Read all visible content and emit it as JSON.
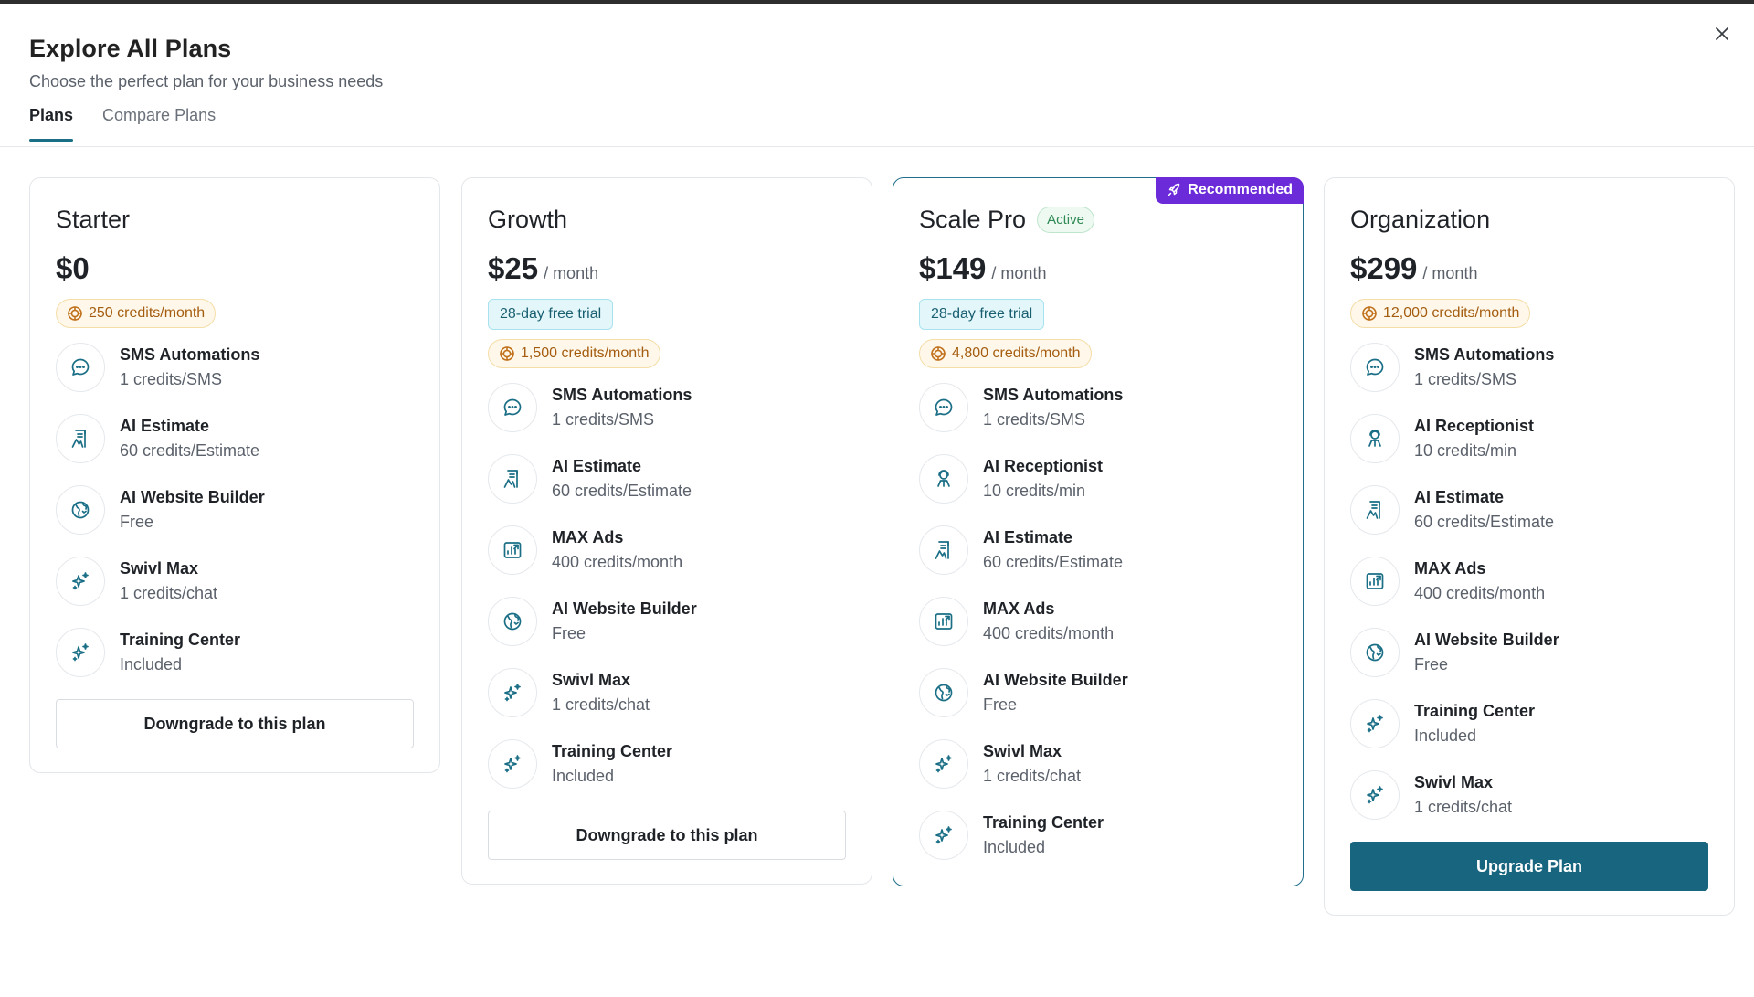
{
  "dialog": {
    "title": "Explore All Plans",
    "subtitle": "Choose the perfect plan for your business needs"
  },
  "tabs": [
    {
      "label": "Plans",
      "active": true
    },
    {
      "label": "Compare Plans",
      "active": false
    }
  ],
  "colors": {
    "accent": "#18657f",
    "recommended": "#6b2bd9",
    "credit_text": "#a45d10",
    "trial_text": "#1a5f70",
    "active_text": "#2f8a55"
  },
  "plans": [
    {
      "name": "Starter",
      "price": "$0",
      "period": "",
      "badge": "",
      "status": "",
      "trial": "",
      "credits": "250 credits/month",
      "features": [
        {
          "name": "SMS Automations",
          "value": "1 credits/SMS",
          "icon": "chat-icon"
        },
        {
          "name": "AI Estimate",
          "value": "60 credits/Estimate",
          "icon": "estimate-icon"
        },
        {
          "name": "AI Website Builder",
          "value": "Free",
          "icon": "globe-icon"
        },
        {
          "name": "Swivl Max",
          "value": "1 credits/chat",
          "icon": "sparkle-icon"
        },
        {
          "name": "Training Center",
          "value": "Included",
          "icon": "sparkle-icon"
        }
      ],
      "button": "Downgrade to this plan",
      "button_style": "outline"
    },
    {
      "name": "Growth",
      "price": "$25",
      "period": "/ month",
      "badge": "",
      "status": "",
      "trial": "28-day free trial",
      "credits": "1,500 credits/month",
      "features": [
        {
          "name": "SMS Automations",
          "value": "1 credits/SMS",
          "icon": "chat-icon"
        },
        {
          "name": "AI Estimate",
          "value": "60 credits/Estimate",
          "icon": "estimate-icon"
        },
        {
          "name": "MAX Ads",
          "value": "400 credits/month",
          "icon": "ads-chart-icon"
        },
        {
          "name": "AI Website Builder",
          "value": "Free",
          "icon": "globe-icon"
        },
        {
          "name": "Swivl Max",
          "value": "1 credits/chat",
          "icon": "sparkle-icon"
        },
        {
          "name": "Training Center",
          "value": "Included",
          "icon": "sparkle-icon"
        }
      ],
      "button": "Downgrade to this plan",
      "button_style": "outline"
    },
    {
      "name": "Scale Pro",
      "price": "$149",
      "period": "/ month",
      "badge": "Recommended",
      "status": "Active",
      "trial": "28-day free trial",
      "credits": "4,800 credits/month",
      "features": [
        {
          "name": "SMS Automations",
          "value": "1 credits/SMS",
          "icon": "chat-icon"
        },
        {
          "name": "AI Receptionist",
          "value": "10 credits/min",
          "icon": "receptionist-icon"
        },
        {
          "name": "AI Estimate",
          "value": "60 credits/Estimate",
          "icon": "estimate-icon"
        },
        {
          "name": "MAX Ads",
          "value": "400 credits/month",
          "icon": "ads-chart-icon"
        },
        {
          "name": "AI Website Builder",
          "value": "Free",
          "icon": "globe-icon"
        },
        {
          "name": "Swivl Max",
          "value": "1 credits/chat",
          "icon": "sparkle-icon"
        },
        {
          "name": "Training Center",
          "value": "Included",
          "icon": "sparkle-icon"
        }
      ],
      "button": "",
      "button_style": "none"
    },
    {
      "name": "Organization",
      "price": "$299",
      "period": "/ month",
      "badge": "",
      "status": "",
      "trial": "",
      "credits": "12,000 credits/month",
      "features": [
        {
          "name": "SMS Automations",
          "value": "1 credits/SMS",
          "icon": "chat-icon"
        },
        {
          "name": "AI Receptionist",
          "value": "10 credits/min",
          "icon": "receptionist-icon"
        },
        {
          "name": "AI Estimate",
          "value": "60 credits/Estimate",
          "icon": "estimate-icon"
        },
        {
          "name": "MAX Ads",
          "value": "400 credits/month",
          "icon": "ads-chart-icon"
        },
        {
          "name": "AI Website Builder",
          "value": "Free",
          "icon": "globe-icon"
        },
        {
          "name": "Training Center",
          "value": "Included",
          "icon": "sparkle-icon"
        },
        {
          "name": "Swivl Max",
          "value": "1 credits/chat",
          "icon": "sparkle-icon"
        }
      ],
      "button": "Upgrade Plan",
      "button_style": "primary"
    }
  ]
}
